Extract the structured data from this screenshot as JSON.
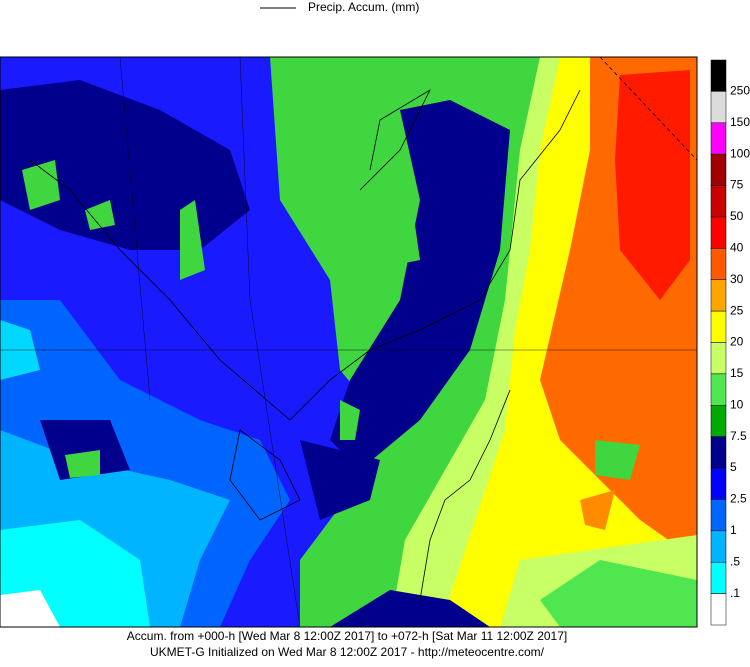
{
  "legend": {
    "label": "Precip. Accum. (mm)"
  },
  "colorbar": {
    "labels": [
      "250",
      "150",
      "100",
      "75",
      "50",
      "40",
      "30",
      "25",
      "20",
      "15",
      "10",
      "7.5",
      "5",
      "2.5",
      "1",
      ".5",
      ".1"
    ],
    "colors": [
      "#000000",
      "#dcdcdc",
      "#ff00ff",
      "#a00000",
      "#c80000",
      "#ff0000",
      "#ff5a00",
      "#ffa500",
      "#ffff00",
      "#c8ff64",
      "#50e650",
      "#00aa00",
      "#00008c",
      "#0000ff",
      "#0064ff",
      "#00b4ff",
      "#00ffff",
      "#ffffff"
    ]
  },
  "footer": {
    "line1": "Accum. from +000-h [Wed Mar 8 12:00Z 2017] to +072-h [Sat Mar 11 12:00Z 2017]",
    "line2": "UKMET-G Initialized on Wed Mar 8 12:00Z 2017 - http://meteocentre.com/"
  }
}
